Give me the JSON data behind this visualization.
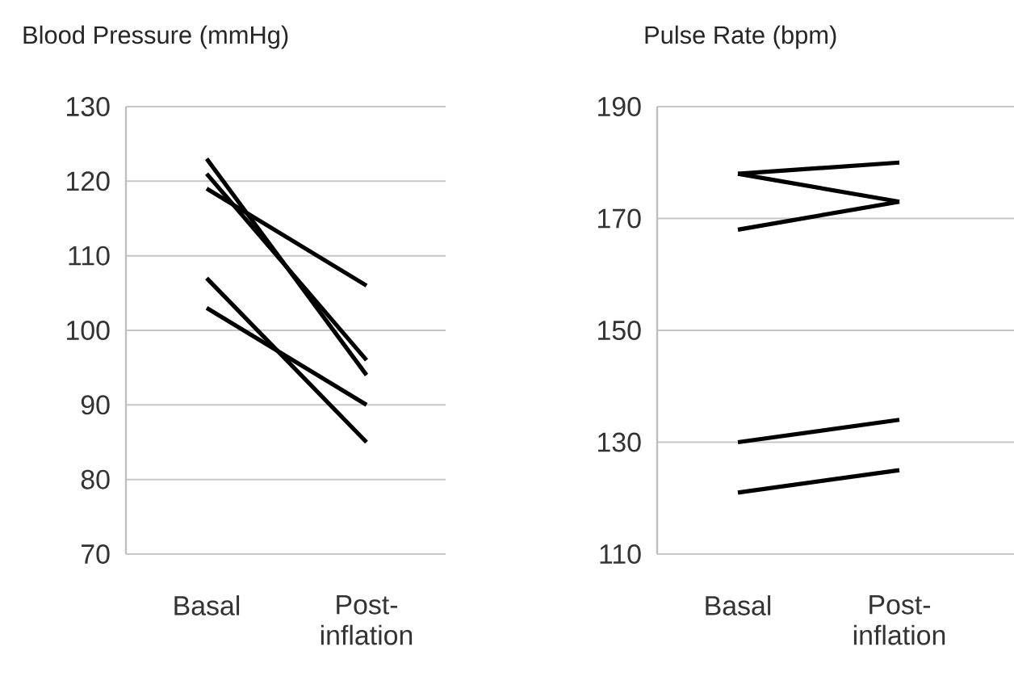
{
  "chart_data": [
    {
      "type": "line",
      "title": "Blood Pressure (mmHg)",
      "categories": [
        "Basal",
        "Post-inflation"
      ],
      "series": [
        {
          "color": "#000000",
          "values": [
            123,
            94
          ]
        },
        {
          "color": "#000000",
          "values": [
            121,
            96
          ]
        },
        {
          "color": "#000000",
          "values": [
            119,
            106
          ]
        },
        {
          "color": "#000000",
          "values": [
            107,
            85
          ]
        },
        {
          "color": "#000000",
          "values": [
            103,
            90
          ]
        }
      ],
      "ylim": [
        70,
        130
      ],
      "yticks": [
        70,
        80,
        90,
        100,
        110,
        120,
        130
      ],
      "grid": "y"
    },
    {
      "type": "line",
      "title": "Pulse Rate (bpm)",
      "categories": [
        "Basal",
        "Post-inflation"
      ],
      "series": [
        {
          "color": "#000000",
          "values": [
            178,
            180
          ]
        },
        {
          "color": "#000000",
          "values": [
            178,
            173
          ]
        },
        {
          "color": "#000000",
          "values": [
            168,
            173
          ]
        },
        {
          "color": "#000000",
          "values": [
            130,
            134
          ]
        },
        {
          "color": "#000000",
          "values": [
            121,
            125
          ]
        }
      ],
      "ylim": [
        110,
        190
      ],
      "yticks": [
        110,
        130,
        150,
        170,
        190
      ],
      "grid": "y"
    }
  ]
}
